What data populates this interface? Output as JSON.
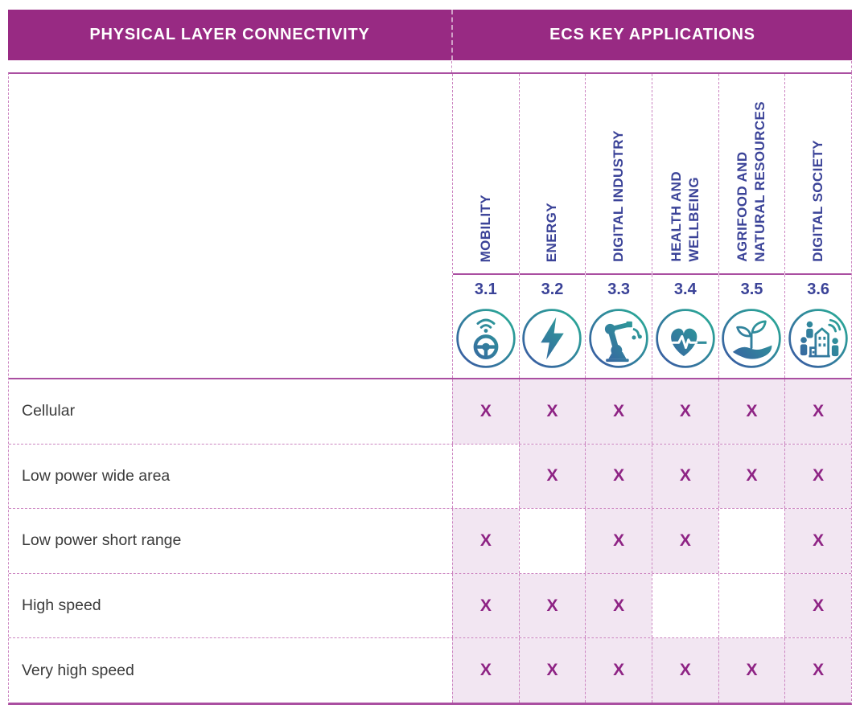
{
  "header": {
    "left_title": "PHYSICAL LAYER CONNECTIVITY",
    "right_title": "ECS KEY APPLICATIONS"
  },
  "applications": [
    {
      "number": "3.1",
      "label": "MOBILITY",
      "icon": "steering-wheel-wifi"
    },
    {
      "number": "3.2",
      "label": "ENERGY",
      "icon": "lightning-bolt"
    },
    {
      "number": "3.3",
      "label": "DIGITAL INDUSTRY",
      "icon": "robot-arm"
    },
    {
      "number": "3.4",
      "label": "HEALTH AND\nWELLBEING",
      "icon": "heart-pulse"
    },
    {
      "number": "3.5",
      "label": "AGRIFOOD AND\nNATURAL RESOURCES",
      "icon": "hand-sprout"
    },
    {
      "number": "3.6",
      "label": "DIGITAL SOCIETY",
      "icon": "people-building-signal"
    }
  ],
  "rows": [
    {
      "label": "Cellular",
      "marks": [
        true,
        true,
        true,
        true,
        true,
        true
      ]
    },
    {
      "label": "Low power wide area",
      "marks": [
        false,
        true,
        true,
        true,
        true,
        true
      ]
    },
    {
      "label": "Low power short range",
      "marks": [
        true,
        false,
        true,
        true,
        false,
        true
      ]
    },
    {
      "label": "High speed",
      "marks": [
        true,
        true,
        true,
        false,
        false,
        true
      ]
    },
    {
      "label": "Very high speed",
      "marks": [
        true,
        true,
        true,
        true,
        true,
        true
      ]
    }
  ],
  "mark_symbol": "X",
  "colors": {
    "banner": "#982a83",
    "solid": "#aa4fa1",
    "dash": "#cc85c1",
    "xcolor": "#8e2384",
    "cellbg": "#f2e6f2",
    "indigo": "#3b4398",
    "rowtext": "#3b3b3b",
    "icon_blue": "#3b53a4",
    "icon_teal": "#28b295"
  },
  "chart_data": {
    "type": "table",
    "row_group_title": "PHYSICAL LAYER CONNECTIVITY",
    "column_group_title": "ECS KEY APPLICATIONS",
    "columns": [
      "3.1 MOBILITY",
      "3.2 ENERGY",
      "3.3 DIGITAL INDUSTRY",
      "3.4 HEALTH AND WELLBEING",
      "3.5 AGRIFOOD AND NATURAL RESOURCES",
      "3.6 DIGITAL SOCIETY"
    ],
    "rows": [
      "Cellular",
      "Low power wide area",
      "Low power short range",
      "High speed",
      "Very high speed"
    ],
    "matrix": [
      [
        "X",
        "X",
        "X",
        "X",
        "X",
        "X"
      ],
      [
        "",
        "X",
        "X",
        "X",
        "X",
        "X"
      ],
      [
        "X",
        "",
        "X",
        "X",
        "",
        "X"
      ],
      [
        "X",
        "X",
        "X",
        "",
        "",
        "X"
      ],
      [
        "X",
        "X",
        "X",
        "X",
        "X",
        "X"
      ]
    ]
  }
}
